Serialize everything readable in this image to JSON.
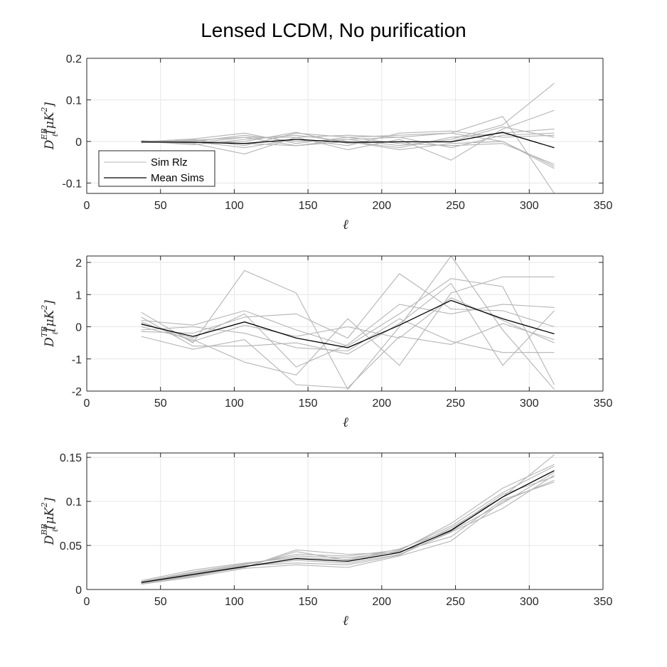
{
  "title": "Lensed LCDM, No purification",
  "colors": {
    "sims": "#b4b4b4",
    "mean": "#000000",
    "grid": "#e6e6e6",
    "axis": "#262626"
  },
  "legend": {
    "sim_label": "Sim Rlz",
    "mean_label": "Mean Sims",
    "placement": "lower-left of top panel"
  },
  "chart_data": [
    {
      "type": "line",
      "xlabel": "ℓ",
      "ylabel": {
        "main": "D",
        "sup": "EB",
        "sub": "ℓ",
        "unit_open": "[",
        "unit_mu": "μ",
        "unit_K": "K",
        "unit_pow": "2",
        "unit_close": "]"
      },
      "xlim": [
        0,
        350
      ],
      "ylim": [
        -0.125,
        0.2
      ],
      "xticks": [
        0,
        50,
        100,
        150,
        200,
        250,
        300,
        350
      ],
      "yticks": [
        -0.1,
        0,
        0.1,
        0.2
      ],
      "ytick_labels": [
        "-0.1",
        "0",
        "0.1",
        "0.2"
      ],
      "grid": true,
      "x": [
        37,
        72,
        107,
        142,
        177,
        212,
        247,
        282,
        317
      ],
      "sims": [
        [
          0.0,
          0.005,
          -0.01,
          0.02,
          0.01,
          0.015,
          0.02,
          0.06,
          -0.125
        ],
        [
          -0.003,
          0.0,
          0.015,
          0.0,
          0.005,
          -0.01,
          0.005,
          0.04,
          0.14
        ],
        [
          0.002,
          -0.005,
          -0.03,
          0.01,
          -0.02,
          0.005,
          -0.045,
          0.03,
          0.075
        ],
        [
          -0.002,
          0.003,
          0.01,
          -0.01,
          0.005,
          0.01,
          0.02,
          0.0,
          -0.06
        ],
        [
          0.001,
          -0.008,
          0.005,
          0.015,
          0.0,
          -0.015,
          0.01,
          0.02,
          0.03
        ],
        [
          0.0,
          0.0,
          -0.015,
          0.005,
          -0.01,
          0.02,
          0.025,
          0.01,
          0.015
        ],
        [
          -0.001,
          0.006,
          0.02,
          -0.005,
          0.01,
          -0.005,
          -0.01,
          -0.005,
          -0.055
        ],
        [
          0.002,
          -0.003,
          0.0,
          0.022,
          -0.005,
          0.0,
          0.0,
          0.035,
          0.01
        ],
        [
          0.0,
          0.002,
          -0.005,
          -0.01,
          0.0,
          -0.02,
          -0.005,
          0.0,
          -0.065
        ],
        [
          -0.002,
          -0.004,
          0.01,
          0.01,
          0.015,
          0.01,
          -0.015,
          0.015,
          0.02
        ]
      ],
      "mean": [
        -0.001,
        -0.002,
        -0.005,
        0.005,
        -0.002,
        -0.001,
        -0.001,
        0.022,
        -0.015
      ],
      "show_legend": true
    },
    {
      "type": "line",
      "xlabel": "ℓ",
      "ylabel": {
        "main": "D",
        "sup": "TB",
        "sub": "ℓ",
        "unit_open": "[",
        "unit_mu": "μ",
        "unit_K": "K",
        "unit_pow": "2",
        "unit_close": "]"
      },
      "xlim": [
        0,
        350
      ],
      "ylim": [
        -2,
        2.2
      ],
      "xticks": [
        0,
        50,
        100,
        150,
        200,
        250,
        300,
        350
      ],
      "yticks": [
        -2,
        -1,
        0,
        1,
        2
      ],
      "ytick_labels": [
        "-2",
        "-1",
        "0",
        "1",
        "2"
      ],
      "grid": true,
      "x": [
        37,
        72,
        107,
        142,
        177,
        212,
        247,
        282,
        317
      ],
      "sims": [
        [
          0.45,
          -0.5,
          1.75,
          1.05,
          -1.95,
          0.0,
          2.2,
          -0.1,
          -1.95
        ],
        [
          -0.3,
          -0.7,
          -0.4,
          -1.8,
          -1.9,
          -0.3,
          -0.55,
          0.1,
          -0.4
        ],
        [
          0.2,
          0.05,
          0.5,
          -0.1,
          -0.6,
          0.4,
          1.5,
          1.25,
          -1.8
        ],
        [
          0.0,
          -0.4,
          -1.1,
          -1.5,
          0.25,
          -1.2,
          1.05,
          1.55,
          1.55
        ],
        [
          -0.15,
          -0.2,
          0.3,
          0.4,
          -0.35,
          1.65,
          0.55,
          0.5,
          0.0
        ],
        [
          0.3,
          -0.6,
          -0.6,
          -0.5,
          -0.85,
          0.1,
          1.35,
          -1.2,
          0.5
        ],
        [
          0.1,
          -0.35,
          0.4,
          -1.25,
          -0.55,
          0.7,
          0.4,
          0.7,
          0.6
        ],
        [
          -0.1,
          0.0,
          -0.2,
          -0.65,
          -0.75,
          0.25,
          -0.45,
          -0.8,
          -0.8
        ],
        [
          0.15,
          -0.45,
          0.05,
          -0.3,
          0.0,
          -0.35,
          0.9,
          0.2,
          -0.5
        ]
      ],
      "mean": [
        0.08,
        -0.3,
        0.15,
        -0.35,
        -0.65,
        0.05,
        0.82,
        0.25,
        -0.22
      ],
      "show_legend": false
    },
    {
      "type": "line",
      "xlabel": "ℓ",
      "ylabel": {
        "main": "D",
        "sup": "BB",
        "sub": "ℓ",
        "unit_open": "[",
        "unit_mu": "μ",
        "unit_K": "K",
        "unit_pow": "2",
        "unit_close": "]"
      },
      "xlim": [
        0,
        350
      ],
      "ylim": [
        0,
        0.155
      ],
      "xticks": [
        0,
        50,
        100,
        150,
        200,
        250,
        300,
        350
      ],
      "yticks": [
        0,
        0.05,
        0.1,
        0.15
      ],
      "ytick_labels": [
        "0",
        "0.05",
        "0.1",
        "0.15"
      ],
      "grid": true,
      "x": [
        37,
        72,
        107,
        142,
        177,
        212,
        247,
        282,
        317
      ],
      "sims": [
        [
          0.008,
          0.017,
          0.025,
          0.045,
          0.04,
          0.042,
          0.07,
          0.105,
          0.153
        ],
        [
          0.006,
          0.014,
          0.024,
          0.028,
          0.025,
          0.038,
          0.055,
          0.1,
          0.124
        ],
        [
          0.009,
          0.019,
          0.028,
          0.04,
          0.038,
          0.045,
          0.072,
          0.11,
          0.14
        ],
        [
          0.007,
          0.015,
          0.026,
          0.033,
          0.03,
          0.04,
          0.065,
          0.092,
          0.13
        ],
        [
          0.01,
          0.022,
          0.03,
          0.036,
          0.034,
          0.046,
          0.068,
          0.108,
          0.128
        ],
        [
          0.008,
          0.018,
          0.027,
          0.03,
          0.028,
          0.039,
          0.066,
          0.098,
          0.133
        ],
        [
          0.007,
          0.016,
          0.025,
          0.043,
          0.033,
          0.044,
          0.075,
          0.115,
          0.142
        ],
        [
          0.009,
          0.02,
          0.029,
          0.038,
          0.036,
          0.043,
          0.06,
          0.102,
          0.122
        ]
      ],
      "mean": [
        0.008,
        0.017,
        0.026,
        0.035,
        0.032,
        0.042,
        0.067,
        0.105,
        0.135
      ],
      "show_legend": false
    }
  ]
}
